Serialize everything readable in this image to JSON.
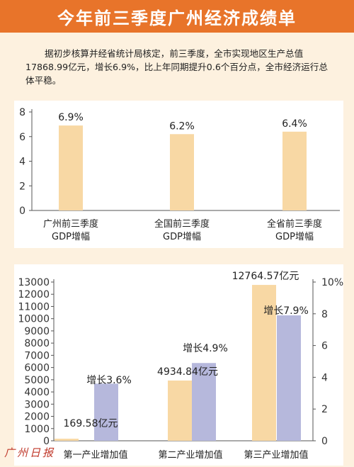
{
  "header": {
    "title": "今年前三季度广州经济成绩单"
  },
  "intro": "据初步核算并经省统计局核定，前三季度，全市实现地区生产总值17868.99亿元，增长6.9%，比上年同期提升0.6个百分点，全市经济运行总体平稳。",
  "watermark": "广州日报",
  "colors": {
    "header": "#e8742a",
    "bar_orange": "#f8d8a4",
    "bar_purple": "#b6b8dc",
    "background": "#fdf1df"
  },
  "chart_data": [
    {
      "type": "bar",
      "categories": [
        [
          "广州前三季度",
          "GDP增幅"
        ],
        [
          "全国前三季度",
          "GDP增幅"
        ],
        [
          "全省前三季度",
          "GDP增幅"
        ]
      ],
      "values": [
        6.9,
        6.2,
        6.4
      ],
      "data_labels": [
        "6.9%",
        "6.2%",
        "6.4%"
      ],
      "ylim": [
        0,
        8
      ],
      "yticks": [
        "0",
        "2",
        "4",
        "6",
        "8"
      ]
    },
    {
      "type": "bar",
      "categories": [
        "第一产业增加值",
        "第二产业增加值",
        "第三产业增加值"
      ],
      "series": [
        {
          "axis": "left",
          "values": [
            169.58,
            4934.84,
            12764.57
          ],
          "data_labels": [
            "169.58亿元",
            "4934.84亿元",
            "12764.57亿元"
          ]
        },
        {
          "axis": "right",
          "values": [
            3.6,
            4.9,
            7.9
          ],
          "data_labels": [
            "增长3.6%",
            "增长4.9%",
            "增长7.9%"
          ]
        }
      ],
      "ylim_left": [
        0,
        13000
      ],
      "yticks_left": [
        "0",
        "1000",
        "2000",
        "3000",
        "4000",
        "5000",
        "6000",
        "7000",
        "8000",
        "9000",
        "10000",
        "11000",
        "12000",
        "13000"
      ],
      "ylim_right": [
        0,
        10
      ],
      "yticks_right": [
        "0",
        "2",
        "4",
        "6",
        "8",
        "10%"
      ]
    }
  ]
}
